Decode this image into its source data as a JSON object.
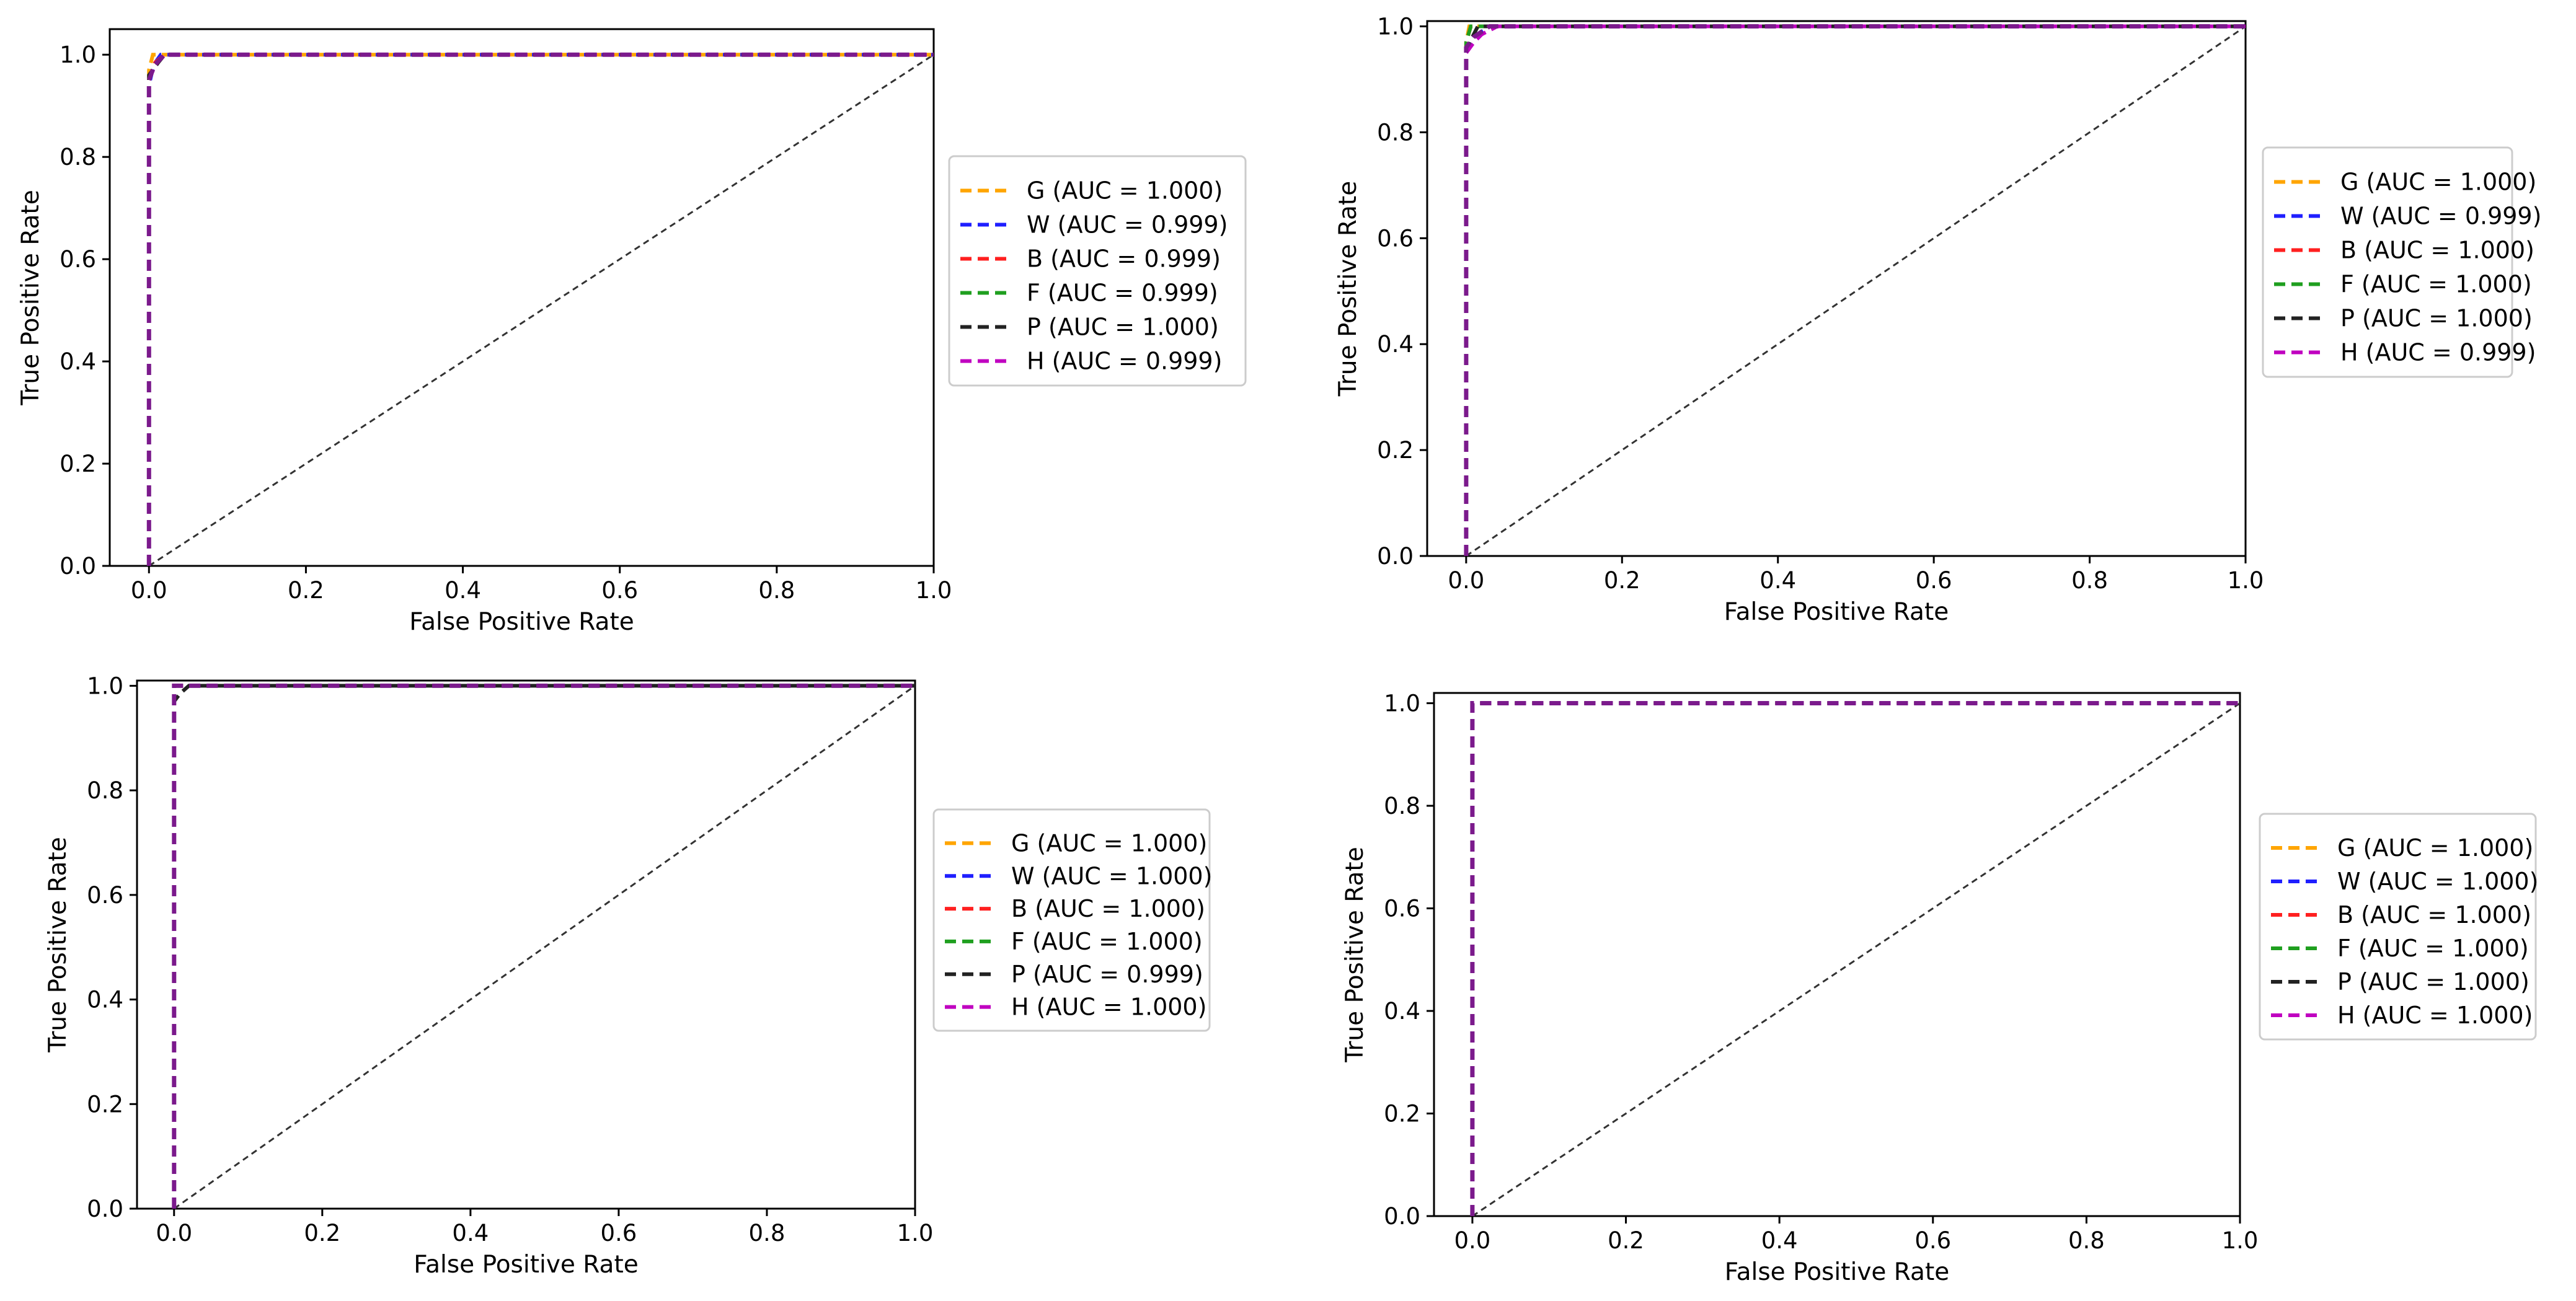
{
  "chart_data": [
    {
      "type": "line",
      "xlabel": "False Positive Rate",
      "ylabel": "True Positive Rate",
      "xlim": [
        -0.05,
        1.0
      ],
      "ylim": [
        0.0,
        1.05
      ],
      "xticks": [
        "0.0",
        "0.2",
        "0.4",
        "0.6",
        "0.8",
        "1.0"
      ],
      "yticks": [
        "0.0",
        "0.2",
        "0.4",
        "0.6",
        "0.8",
        "1.0"
      ],
      "legend_position": "right",
      "diagonal": {
        "name": "chance",
        "x": [
          0,
          1
        ],
        "y": [
          0,
          1
        ],
        "color": "#333333"
      },
      "series": [
        {
          "name": "G (AUC = 1.000)",
          "color": "#ffa500",
          "x": [
            0,
            0,
            0.005,
            1
          ],
          "y": [
            0,
            0.97,
            1.0,
            1.0
          ]
        },
        {
          "name": "W (AUC = 0.999)",
          "color": "#1f1fff",
          "x": [
            0,
            0,
            0.006,
            0.015,
            1
          ],
          "y": [
            0,
            0.94,
            0.98,
            1.0,
            1.0
          ]
        },
        {
          "name": "B (AUC = 0.999)",
          "color": "#ff2020",
          "x": [
            0,
            0,
            0.008,
            0.02,
            1
          ],
          "y": [
            0,
            0.95,
            0.985,
            1.0,
            1.0
          ]
        },
        {
          "name": "F (AUC = 0.999)",
          "color": "#1f9f1f",
          "x": [
            0,
            0,
            0.007,
            0.02,
            1
          ],
          "y": [
            0,
            0.95,
            0.98,
            1.0,
            1.0
          ]
        },
        {
          "name": "P (AUC = 1.000)",
          "color": "#222222",
          "x": [
            0,
            0,
            0.012,
            0.02,
            1
          ],
          "y": [
            0,
            0.96,
            0.985,
            1.0,
            1.0
          ]
        },
        {
          "name": "H (AUC = 0.999)",
          "color": "#c000c0",
          "x": [
            0,
            0,
            0.008,
            0.02,
            1
          ],
          "y": [
            0,
            0.95,
            0.98,
            1.0,
            1.0
          ]
        }
      ],
      "purple_overlay": {
        "color": "#7b1a8c",
        "x": [
          0,
          0,
          0.007,
          0.02,
          1
        ],
        "y": [
          0,
          0.95,
          0.98,
          1.0,
          1.0
        ]
      }
    },
    {
      "type": "line",
      "xlabel": "False Positive Rate",
      "ylabel": "True Positive Rate",
      "xlim": [
        -0.05,
        1.0
      ],
      "ylim": [
        0.0,
        1.01
      ],
      "xticks": [
        "0.0",
        "0.2",
        "0.4",
        "0.6",
        "0.8",
        "1.0"
      ],
      "yticks": [
        "0.0",
        "0.2",
        "0.4",
        "0.6",
        "0.8",
        "1.0"
      ],
      "legend_position": "right",
      "diagonal": {
        "name": "chance",
        "x": [
          0,
          1
        ],
        "y": [
          0,
          1
        ],
        "color": "#333333"
      },
      "series": [
        {
          "name": "G (AUC = 1.000)",
          "color": "#ffa500",
          "x": [
            0,
            0,
            0.004,
            1
          ],
          "y": [
            0,
            0.97,
            1.0,
            1.0
          ]
        },
        {
          "name": "W (AUC = 0.999)",
          "color": "#1f1fff",
          "x": [
            0,
            0,
            0.01,
            0.03,
            1
          ],
          "y": [
            0,
            0.95,
            0.98,
            1.0,
            1.0
          ]
        },
        {
          "name": "B (AUC = 1.000)",
          "color": "#ff2020",
          "x": [
            0,
            0,
            0.006,
            1
          ],
          "y": [
            0,
            0.97,
            1.0,
            1.0
          ]
        },
        {
          "name": "F (AUC = 1.000)",
          "color": "#1f9f1f",
          "x": [
            0,
            0,
            0.006,
            1
          ],
          "y": [
            0,
            0.97,
            1.0,
            1.0
          ]
        },
        {
          "name": "P (AUC = 1.000)",
          "color": "#222222",
          "x": [
            0,
            0,
            0.008,
            0.015,
            1
          ],
          "y": [
            0,
            0.95,
            0.98,
            1.0,
            1.0
          ]
        },
        {
          "name": "H (AUC = 0.999)",
          "color": "#c000c0",
          "x": [
            0,
            0,
            0.01,
            0.02,
            0.04,
            1
          ],
          "y": [
            0,
            0.95,
            0.97,
            0.985,
            1.0,
            1.0
          ]
        }
      ],
      "purple_overlay": {
        "color": "#7b1a8c",
        "x": [
          0,
          0,
          0.01,
          0.03,
          1
        ],
        "y": [
          0,
          0.96,
          0.98,
          1.0,
          1.0
        ]
      }
    },
    {
      "type": "line",
      "xlabel": "False Positive Rate",
      "ylabel": "True Positive Rate",
      "xlim": [
        -0.05,
        1.0
      ],
      "ylim": [
        0.0,
        1.01
      ],
      "xticks": [
        "0.0",
        "0.2",
        "0.4",
        "0.6",
        "0.8",
        "1.0"
      ],
      "yticks": [
        "0.0",
        "0.2",
        "0.4",
        "0.6",
        "0.8",
        "1.0"
      ],
      "legend_position": "right",
      "diagonal": {
        "name": "chance",
        "x": [
          0,
          1
        ],
        "y": [
          0,
          1
        ],
        "color": "#333333"
      },
      "series": [
        {
          "name": "G (AUC = 1.000)",
          "color": "#ffa500",
          "x": [
            0,
            0,
            1
          ],
          "y": [
            0,
            1.0,
            1.0
          ]
        },
        {
          "name": "W (AUC = 1.000)",
          "color": "#1f1fff",
          "x": [
            0,
            0,
            1
          ],
          "y": [
            0,
            1.0,
            1.0
          ]
        },
        {
          "name": "B (AUC = 1.000)",
          "color": "#ff2020",
          "x": [
            0,
            0,
            1
          ],
          "y": [
            0,
            1.0,
            1.0
          ]
        },
        {
          "name": "F (AUC = 1.000)",
          "color": "#1f9f1f",
          "x": [
            0,
            0,
            1
          ],
          "y": [
            0,
            1.0,
            1.0
          ]
        },
        {
          "name": "P (AUC = 0.999)",
          "color": "#222222",
          "x": [
            0,
            0,
            0.008,
            0.02,
            1
          ],
          "y": [
            0,
            0.97,
            0.985,
            1.0,
            1.0
          ]
        },
        {
          "name": "H (AUC = 1.000)",
          "color": "#c000c0",
          "x": [
            0,
            0,
            1
          ],
          "y": [
            0,
            1.0,
            1.0
          ]
        }
      ],
      "purple_overlay": {
        "color": "#7b1a8c",
        "x": [
          0,
          0,
          1
        ],
        "y": [
          0,
          1.0,
          1.0
        ]
      }
    },
    {
      "type": "line",
      "xlabel": "False Positive Rate",
      "ylabel": "True Positive Rate",
      "xlim": [
        -0.05,
        1.0
      ],
      "ylim": [
        0.0,
        1.02
      ],
      "xticks": [
        "0.0",
        "0.2",
        "0.4",
        "0.6",
        "0.8",
        "1.0"
      ],
      "yticks": [
        "0.0",
        "0.2",
        "0.4",
        "0.6",
        "0.8",
        "1.0"
      ],
      "legend_position": "right",
      "diagonal": {
        "name": "chance",
        "x": [
          0,
          1
        ],
        "y": [
          0,
          1
        ],
        "color": "#333333"
      },
      "series": [
        {
          "name": "G (AUC = 1.000)",
          "color": "#ffa500",
          "x": [
            0,
            0,
            1
          ],
          "y": [
            0,
            1.0,
            1.0
          ]
        },
        {
          "name": "W (AUC = 1.000)",
          "color": "#1f1fff",
          "x": [
            0,
            0,
            1
          ],
          "y": [
            0,
            1.0,
            1.0
          ]
        },
        {
          "name": "B (AUC = 1.000)",
          "color": "#ff2020",
          "x": [
            0,
            0,
            1
          ],
          "y": [
            0,
            1.0,
            1.0
          ]
        },
        {
          "name": "F (AUC = 1.000)",
          "color": "#1f9f1f",
          "x": [
            0,
            0,
            1
          ],
          "y": [
            0,
            1.0,
            1.0
          ]
        },
        {
          "name": "P (AUC = 1.000)",
          "color": "#222222",
          "x": [
            0,
            0,
            1
          ],
          "y": [
            0,
            1.0,
            1.0
          ]
        },
        {
          "name": "H (AUC = 1.000)",
          "color": "#c000c0",
          "x": [
            0,
            0,
            1
          ],
          "y": [
            0,
            1.0,
            1.0
          ]
        }
      ],
      "purple_overlay": {
        "color": "#7b1a8c",
        "x": [
          0,
          0,
          1
        ],
        "y": [
          0,
          1.0,
          1.0
        ]
      }
    }
  ]
}
